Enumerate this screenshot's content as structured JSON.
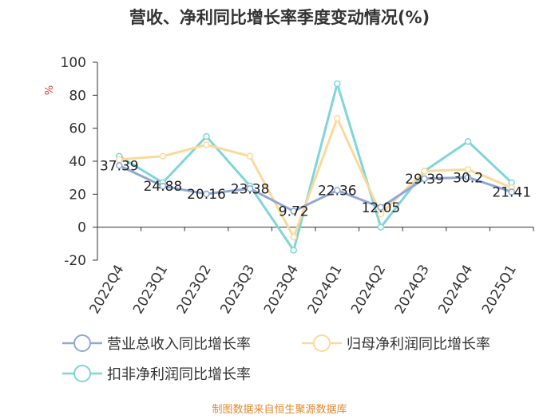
{
  "title": "营收、净利同比增长率季度变动情况(%)",
  "source": "制图数据来自恒生聚源数据库",
  "chart_data": {
    "type": "line",
    "title": "营收、净利同比增长率季度变动情况(%)",
    "ylabel": "%",
    "xlabel": "",
    "ylim": [
      -20,
      100
    ],
    "yticks": [
      -20,
      0,
      20,
      40,
      60,
      80,
      100
    ],
    "categories": [
      "2022Q4",
      "2023Q1",
      "2023Q2",
      "2023Q3",
      "2023Q4",
      "2024Q1",
      "2024Q2",
      "2024Q3",
      "2024Q4",
      "2025Q1"
    ],
    "grid": false,
    "legend_position": "bottom",
    "series": [
      {
        "name": "营业总收入同比增长率",
        "color": "#8fa8d6",
        "values": [
          37.39,
          24.88,
          20.16,
          23.38,
          9.72,
          22.36,
          12.05,
          29.39,
          30.2,
          21.41
        ],
        "labels": [
          "37.39",
          "24.88",
          "20.16",
          "23.38",
          "9.72",
          "22.36",
          "12.05",
          "29.39",
          "30.2",
          "21.41"
        ]
      },
      {
        "name": "归母净利润同比增长率",
        "color": "#fbd99b",
        "values": [
          41,
          43,
          50,
          43,
          -6,
          66,
          8,
          34,
          35,
          24
        ]
      },
      {
        "name": "扣非净利润同比增长率",
        "color": "#7fd5d8",
        "values": [
          43,
          27,
          55,
          25,
          -14,
          87,
          0,
          34,
          52,
          27
        ]
      }
    ]
  }
}
